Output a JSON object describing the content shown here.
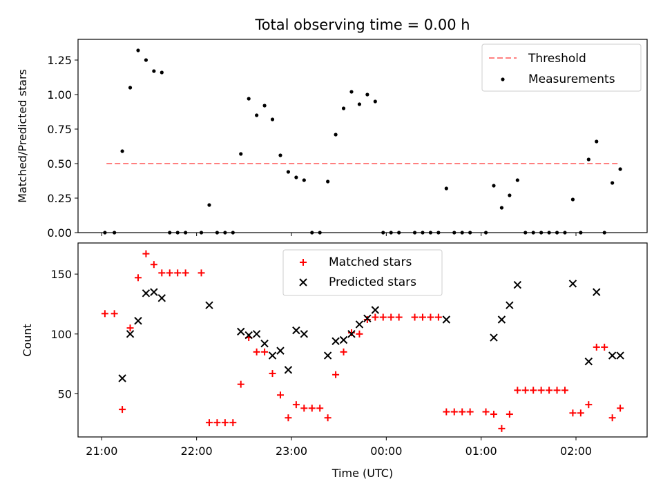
{
  "chart_data": [
    {
      "type": "scatter",
      "title": "Total observing time = 0.00 h",
      "ylabel": "Matched/Predicted stars",
      "xlabel": "",
      "ylim": [
        0,
        1.4
      ],
      "y_ticks": [
        0.0,
        0.25,
        0.5,
        0.75,
        1.0,
        1.25
      ],
      "y_tick_labels": [
        "0.00",
        "0.25",
        "0.50",
        "0.75",
        "1.00",
        "1.25"
      ],
      "legend_position": "top-right",
      "threshold": {
        "name": "Threshold",
        "value": 0.5,
        "x_start": "21:03",
        "x_end": "02:28",
        "color": "#ff7f7f"
      },
      "series": [
        {
          "name": "Measurements",
          "color": "#000000",
          "points": [
            [
              "21:02",
              0.0
            ],
            [
              "21:08",
              0.0
            ],
            [
              "21:13",
              0.59
            ],
            [
              "21:18",
              1.05
            ],
            [
              "21:23",
              1.32
            ],
            [
              "21:28",
              1.25
            ],
            [
              "21:33",
              1.17
            ],
            [
              "21:38",
              1.16
            ],
            [
              "21:43",
              0.0
            ],
            [
              "21:48",
              0.0
            ],
            [
              "21:53",
              0.0
            ],
            [
              "22:03",
              0.0
            ],
            [
              "22:08",
              0.2
            ],
            [
              "22:13",
              0.0
            ],
            [
              "22:18",
              0.0
            ],
            [
              "22:23",
              0.0
            ],
            [
              "22:28",
              0.57
            ],
            [
              "22:33",
              0.97
            ],
            [
              "22:38",
              0.85
            ],
            [
              "22:43",
              0.92
            ],
            [
              "22:48",
              0.82
            ],
            [
              "22:53",
              0.56
            ],
            [
              "22:58",
              0.44
            ],
            [
              "23:03",
              0.4
            ],
            [
              "23:08",
              0.38
            ],
            [
              "23:13",
              0.0
            ],
            [
              "23:18",
              0.0
            ],
            [
              "23:23",
              0.37
            ],
            [
              "23:28",
              0.71
            ],
            [
              "23:33",
              0.9
            ],
            [
              "23:38",
              1.02
            ],
            [
              "23:43",
              0.93
            ],
            [
              "23:48",
              1.0
            ],
            [
              "23:53",
              0.95
            ],
            [
              "23:58",
              0.0
            ],
            [
              "00:03",
              0.0
            ],
            [
              "00:08",
              0.0
            ],
            [
              "00:18",
              0.0
            ],
            [
              "00:23",
              0.0
            ],
            [
              "00:28",
              0.0
            ],
            [
              "00:33",
              0.0
            ],
            [
              "00:38",
              0.32
            ],
            [
              "00:43",
              0.0
            ],
            [
              "00:48",
              0.0
            ],
            [
              "00:53",
              0.0
            ],
            [
              "01:03",
              0.0
            ],
            [
              "01:08",
              0.34
            ],
            [
              "01:13",
              0.18
            ],
            [
              "01:18",
              0.27
            ],
            [
              "01:23",
              0.38
            ],
            [
              "01:28",
              0.0
            ],
            [
              "01:33",
              0.0
            ],
            [
              "01:38",
              0.0
            ],
            [
              "01:43",
              0.0
            ],
            [
              "01:48",
              0.0
            ],
            [
              "01:53",
              0.0
            ],
            [
              "01:58",
              0.24
            ],
            [
              "02:03",
              0.0
            ],
            [
              "02:08",
              0.53
            ],
            [
              "02:13",
              0.66
            ],
            [
              "02:18",
              0.0
            ],
            [
              "02:23",
              0.36
            ],
            [
              "02:28",
              0.46
            ]
          ]
        }
      ]
    },
    {
      "type": "scatter",
      "title": "",
      "ylabel": "Count",
      "xlabel": "Time (UTC)",
      "ylim": [
        14,
        176
      ],
      "y_ticks": [
        50,
        100,
        150
      ],
      "y_tick_labels": [
        "50",
        "100",
        "150"
      ],
      "x_ticks": [
        "21:00",
        "22:00",
        "23:00",
        "00:00",
        "01:00",
        "02:00"
      ],
      "x_range": [
        "20:45",
        "02:45"
      ],
      "legend_position": "top-center",
      "series": [
        {
          "name": "Matched stars",
          "color": "#ff0000",
          "marker": "plus",
          "points": [
            [
              "21:02",
              117
            ],
            [
              "21:08",
              117
            ],
            [
              "21:13",
              37
            ],
            [
              "21:18",
              105
            ],
            [
              "21:23",
              147
            ],
            [
              "21:28",
              167
            ],
            [
              "21:33",
              158
            ],
            [
              "21:38",
              151
            ],
            [
              "21:43",
              151
            ],
            [
              "21:48",
              151
            ],
            [
              "21:53",
              151
            ],
            [
              "22:03",
              151
            ],
            [
              "22:08",
              26
            ],
            [
              "22:13",
              26
            ],
            [
              "22:18",
              26
            ],
            [
              "22:23",
              26
            ],
            [
              "22:28",
              58
            ],
            [
              "22:33",
              97
            ],
            [
              "22:38",
              85
            ],
            [
              "22:43",
              85
            ],
            [
              "22:48",
              67
            ],
            [
              "22:53",
              49
            ],
            [
              "22:58",
              30
            ],
            [
              "23:03",
              41
            ],
            [
              "23:08",
              38
            ],
            [
              "23:13",
              38
            ],
            [
              "23:18",
              38
            ],
            [
              "23:23",
              30
            ],
            [
              "23:28",
              66
            ],
            [
              "23:33",
              85
            ],
            [
              "23:38",
              101
            ],
            [
              "23:43",
              100
            ],
            [
              "23:48",
              112
            ],
            [
              "23:53",
              114
            ],
            [
              "23:58",
              114
            ],
            [
              "00:03",
              114
            ],
            [
              "00:08",
              114
            ],
            [
              "00:18",
              114
            ],
            [
              "00:23",
              114
            ],
            [
              "00:28",
              114
            ],
            [
              "00:33",
              114
            ],
            [
              "00:38",
              35
            ],
            [
              "00:43",
              35
            ],
            [
              "00:48",
              35
            ],
            [
              "00:53",
              35
            ],
            [
              "01:03",
              35
            ],
            [
              "01:08",
              33
            ],
            [
              "01:13",
              21
            ],
            [
              "01:18",
              33
            ],
            [
              "01:23",
              53
            ],
            [
              "01:28",
              53
            ],
            [
              "01:33",
              53
            ],
            [
              "01:38",
              53
            ],
            [
              "01:43",
              53
            ],
            [
              "01:48",
              53
            ],
            [
              "01:53",
              53
            ],
            [
              "01:58",
              34
            ],
            [
              "02:03",
              34
            ],
            [
              "02:08",
              41
            ],
            [
              "02:13",
              89
            ],
            [
              "02:18",
              89
            ],
            [
              "02:23",
              30
            ],
            [
              "02:28",
              38
            ]
          ]
        },
        {
          "name": "Predicted stars",
          "color": "#000000",
          "marker": "x",
          "points": [
            [
              "21:13",
              63
            ],
            [
              "21:18",
              100
            ],
            [
              "21:23",
              111
            ],
            [
              "21:28",
              134
            ],
            [
              "21:33",
              135
            ],
            [
              "21:38",
              130
            ],
            [
              "22:08",
              124
            ],
            [
              "22:28",
              102
            ],
            [
              "22:33",
              99
            ],
            [
              "22:38",
              100
            ],
            [
              "22:43",
              92
            ],
            [
              "22:48",
              82
            ],
            [
              "22:53",
              86
            ],
            [
              "22:58",
              70
            ],
            [
              "23:03",
              103
            ],
            [
              "23:08",
              100
            ],
            [
              "23:23",
              82
            ],
            [
              "23:28",
              94
            ],
            [
              "23:33",
              95
            ],
            [
              "23:38",
              100
            ],
            [
              "23:43",
              108
            ],
            [
              "23:48",
              113
            ],
            [
              "23:53",
              120
            ],
            [
              "00:38",
              112
            ],
            [
              "01:08",
              97
            ],
            [
              "01:13",
              112
            ],
            [
              "01:18",
              124
            ],
            [
              "01:23",
              141
            ],
            [
              "01:58",
              142
            ],
            [
              "02:08",
              77
            ],
            [
              "02:13",
              135
            ],
            [
              "02:23",
              82
            ],
            [
              "02:28",
              82
            ]
          ]
        }
      ]
    }
  ]
}
